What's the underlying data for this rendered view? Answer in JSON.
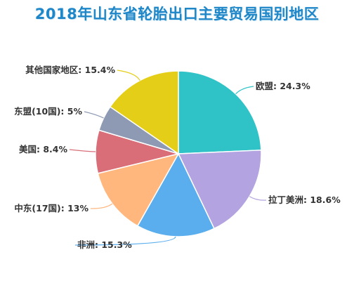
{
  "title": "2018年山东省轮胎出口主要贸易国别地区",
  "chart_data": {
    "type": "pie",
    "title": "2018年山东省轮胎出口主要贸易国别地区",
    "unit": "%",
    "slices": [
      {
        "name": "欧盟",
        "value": 24.3,
        "label": "欧盟: 24.3%",
        "color": "#2fc3c7"
      },
      {
        "name": "拉丁美洲",
        "value": 18.6,
        "label": "拉丁美洲: 18.6%",
        "color": "#b3a3e0"
      },
      {
        "name": "非洲",
        "value": 15.3,
        "label": "非洲: 15.3%",
        "color": "#5aaeee"
      },
      {
        "name": "中东(17国)",
        "value": 13,
        "label": "中东(17国): 13%",
        "color": "#ffb77e"
      },
      {
        "name": "美国",
        "value": 8.4,
        "label": "美国: 8.4%",
        "color": "#d96e78"
      },
      {
        "name": "东盟(10国)",
        "value": 5,
        "label": "东盟(10国): 5%",
        "color": "#8e9ab3"
      },
      {
        "name": "其他国家地区",
        "value": 15.4,
        "label": "其他国家地区: 15.4%",
        "color": "#e4ce17"
      }
    ]
  }
}
